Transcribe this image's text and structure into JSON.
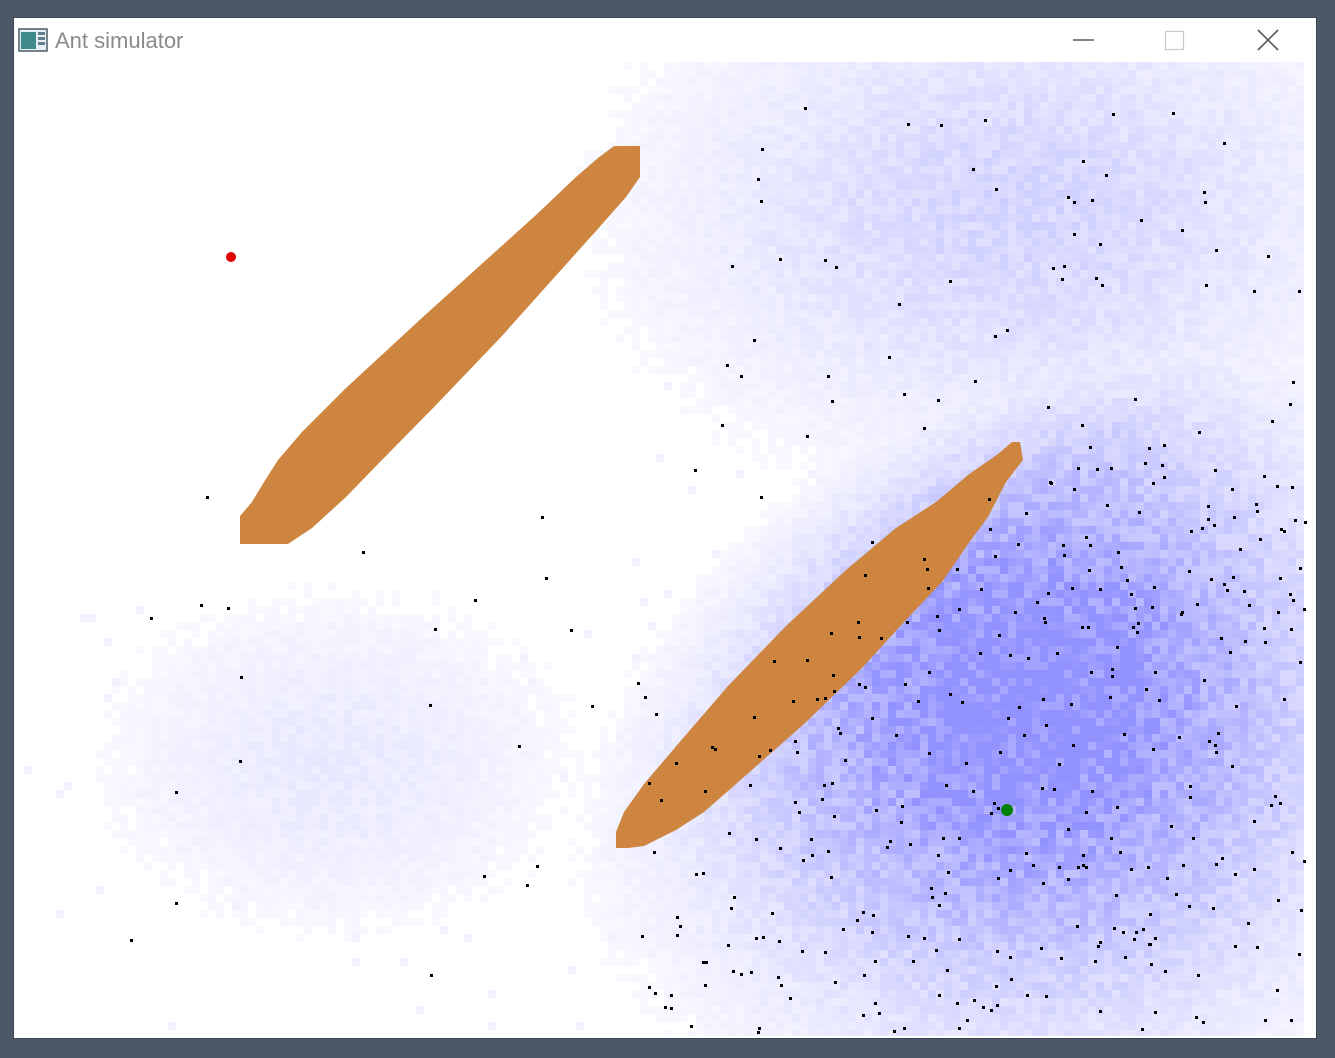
{
  "window": {
    "title": "Ant simulator",
    "icon": "app-window-icon",
    "controls": {
      "minimize_icon": "minimize-icon",
      "maximize_icon": "maximize-icon",
      "close_icon": "close-icon"
    }
  },
  "simulation": {
    "colors": {
      "background": "#ffffff",
      "obstacle": "#cd853f",
      "pheromone": "#8c8cff",
      "ant": "#000000",
      "food": "#e00000",
      "nest": "#008000"
    }
  }
}
